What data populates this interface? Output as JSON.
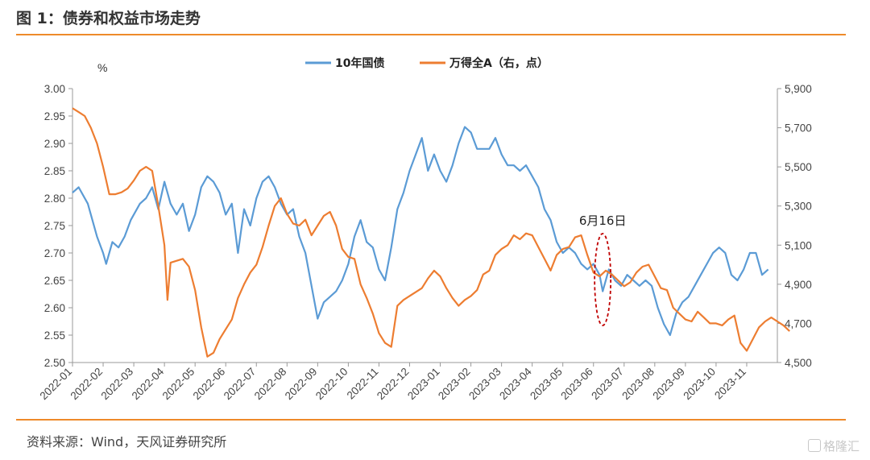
{
  "figure_title": "图 1：债券和权益市场走势",
  "source_note": "资料来源：Wind，天风证券研究所",
  "watermark": "格隆汇",
  "colors": {
    "rule": "#ee8a2a",
    "bond": "#5b9bd5",
    "equity": "#ed7d31",
    "annotation": "#c00000"
  },
  "chart_data": {
    "type": "line",
    "left_unit": "%",
    "legend": [
      "10年国债",
      "万得全A（右，点）"
    ],
    "legend_position": "top-center",
    "grid": false,
    "x_labels": [
      "2022-01",
      "2022-02",
      "2022-03",
      "2022-04",
      "2022-05",
      "2022-06",
      "2022-07",
      "2022-08",
      "2022-09",
      "2022-10",
      "2022-11",
      "2022-12",
      "2023-01",
      "2023-02",
      "2023-03",
      "2023-04",
      "2023-05",
      "2023-06",
      "2023-07",
      "2023-08",
      "2023-09",
      "2023-10",
      "2023-11"
    ],
    "y_left": {
      "ticks": [
        "3.00",
        "2.95",
        "2.90",
        "2.85",
        "2.80",
        "2.75",
        "2.70",
        "2.65",
        "2.60",
        "2.55",
        "2.50"
      ],
      "range": [
        2.5,
        3.0
      ]
    },
    "y_right": {
      "ticks": [
        "5,900",
        "5,700",
        "5,500",
        "5,300",
        "5,100",
        "4,900",
        "4,700",
        "4,500"
      ],
      "range": [
        4500,
        5900
      ]
    },
    "annotation": {
      "text": "6月16日",
      "x": 17.3
    },
    "series": [
      {
        "name": "10年国债",
        "axis": "left",
        "points": [
          [
            0,
            2.81
          ],
          [
            0.2,
            2.82
          ],
          [
            0.5,
            2.79
          ],
          [
            0.8,
            2.73
          ],
          [
            1.0,
            2.7
          ],
          [
            1.1,
            2.68
          ],
          [
            1.3,
            2.72
          ],
          [
            1.5,
            2.71
          ],
          [
            1.7,
            2.73
          ],
          [
            1.9,
            2.76
          ],
          [
            2.2,
            2.79
          ],
          [
            2.4,
            2.8
          ],
          [
            2.6,
            2.82
          ],
          [
            2.8,
            2.78
          ],
          [
            3.0,
            2.83
          ],
          [
            3.2,
            2.79
          ],
          [
            3.4,
            2.77
          ],
          [
            3.6,
            2.79
          ],
          [
            3.8,
            2.74
          ],
          [
            4.0,
            2.77
          ],
          [
            4.2,
            2.82
          ],
          [
            4.4,
            2.84
          ],
          [
            4.6,
            2.83
          ],
          [
            4.8,
            2.81
          ],
          [
            5.0,
            2.77
          ],
          [
            5.2,
            2.79
          ],
          [
            5.4,
            2.7
          ],
          [
            5.6,
            2.78
          ],
          [
            5.8,
            2.75
          ],
          [
            6.0,
            2.8
          ],
          [
            6.2,
            2.83
          ],
          [
            6.4,
            2.84
          ],
          [
            6.6,
            2.82
          ],
          [
            6.8,
            2.79
          ],
          [
            7.0,
            2.77
          ],
          [
            7.2,
            2.78
          ],
          [
            7.4,
            2.73
          ],
          [
            7.6,
            2.7
          ],
          [
            7.8,
            2.64
          ],
          [
            8.0,
            2.58
          ],
          [
            8.2,
            2.61
          ],
          [
            8.4,
            2.62
          ],
          [
            8.6,
            2.63
          ],
          [
            8.8,
            2.65
          ],
          [
            9.0,
            2.68
          ],
          [
            9.2,
            2.73
          ],
          [
            9.4,
            2.76
          ],
          [
            9.6,
            2.72
          ],
          [
            9.8,
            2.71
          ],
          [
            10.0,
            2.67
          ],
          [
            10.2,
            2.65
          ],
          [
            10.4,
            2.71
          ],
          [
            10.6,
            2.78
          ],
          [
            10.8,
            2.81
          ],
          [
            11.0,
            2.85
          ],
          [
            11.2,
            2.88
          ],
          [
            11.4,
            2.91
          ],
          [
            11.6,
            2.85
          ],
          [
            11.8,
            2.88
          ],
          [
            12.0,
            2.85
          ],
          [
            12.2,
            2.83
          ],
          [
            12.4,
            2.86
          ],
          [
            12.6,
            2.9
          ],
          [
            12.8,
            2.93
          ],
          [
            13.0,
            2.92
          ],
          [
            13.2,
            2.89
          ],
          [
            13.4,
            2.89
          ],
          [
            13.6,
            2.89
          ],
          [
            13.8,
            2.91
          ],
          [
            14.0,
            2.88
          ],
          [
            14.2,
            2.86
          ],
          [
            14.4,
            2.86
          ],
          [
            14.6,
            2.85
          ],
          [
            14.8,
            2.86
          ],
          [
            15.0,
            2.84
          ],
          [
            15.2,
            2.82
          ],
          [
            15.4,
            2.78
          ],
          [
            15.6,
            2.76
          ],
          [
            15.8,
            2.72
          ],
          [
            16.0,
            2.7
          ],
          [
            16.2,
            2.71
          ],
          [
            16.4,
            2.7
          ],
          [
            16.6,
            2.68
          ],
          [
            16.8,
            2.67
          ],
          [
            17.0,
            2.68
          ],
          [
            17.2,
            2.66
          ],
          [
            17.3,
            2.63
          ],
          [
            17.5,
            2.67
          ],
          [
            17.7,
            2.65
          ],
          [
            17.9,
            2.64
          ],
          [
            18.1,
            2.66
          ],
          [
            18.3,
            2.65
          ],
          [
            18.5,
            2.64
          ],
          [
            18.7,
            2.65
          ],
          [
            18.9,
            2.64
          ],
          [
            19.1,
            2.6
          ],
          [
            19.3,
            2.57
          ],
          [
            19.5,
            2.55
          ],
          [
            19.7,
            2.59
          ],
          [
            19.9,
            2.61
          ],
          [
            20.1,
            2.62
          ],
          [
            20.3,
            2.64
          ],
          [
            20.5,
            2.66
          ],
          [
            20.7,
            2.68
          ],
          [
            20.9,
            2.7
          ],
          [
            21.1,
            2.71
          ],
          [
            21.3,
            2.7
          ],
          [
            21.5,
            2.66
          ],
          [
            21.7,
            2.65
          ],
          [
            21.9,
            2.67
          ],
          [
            22.1,
            2.7
          ],
          [
            22.3,
            2.7
          ],
          [
            22.5,
            2.66
          ],
          [
            22.7,
            2.67
          ]
        ]
      },
      {
        "name": "万得全A（右，点）",
        "axis": "right",
        "points": [
          [
            0,
            5800
          ],
          [
            0.2,
            5780
          ],
          [
            0.4,
            5760
          ],
          [
            0.6,
            5700
          ],
          [
            0.8,
            5620
          ],
          [
            1.0,
            5500
          ],
          [
            1.2,
            5360
          ],
          [
            1.4,
            5360
          ],
          [
            1.6,
            5370
          ],
          [
            1.8,
            5390
          ],
          [
            2.0,
            5430
          ],
          [
            2.2,
            5480
          ],
          [
            2.4,
            5500
          ],
          [
            2.6,
            5480
          ],
          [
            2.8,
            5300
          ],
          [
            3.0,
            5100
          ],
          [
            3.1,
            4820
          ],
          [
            3.2,
            5010
          ],
          [
            3.4,
            5020
          ],
          [
            3.6,
            5030
          ],
          [
            3.8,
            4990
          ],
          [
            4.0,
            4870
          ],
          [
            4.2,
            4680
          ],
          [
            4.4,
            4530
          ],
          [
            4.6,
            4550
          ],
          [
            4.8,
            4620
          ],
          [
            5.0,
            4670
          ],
          [
            5.2,
            4720
          ],
          [
            5.4,
            4830
          ],
          [
            5.6,
            4900
          ],
          [
            5.8,
            4960
          ],
          [
            6.0,
            5000
          ],
          [
            6.2,
            5090
          ],
          [
            6.4,
            5200
          ],
          [
            6.6,
            5300
          ],
          [
            6.8,
            5340
          ],
          [
            7.0,
            5260
          ],
          [
            7.2,
            5210
          ],
          [
            7.4,
            5200
          ],
          [
            7.6,
            5230
          ],
          [
            7.8,
            5150
          ],
          [
            8.0,
            5200
          ],
          [
            8.2,
            5250
          ],
          [
            8.4,
            5270
          ],
          [
            8.6,
            5200
          ],
          [
            8.8,
            5080
          ],
          [
            9.0,
            5040
          ],
          [
            9.2,
            5030
          ],
          [
            9.4,
            4900
          ],
          [
            9.6,
            4830
          ],
          [
            9.8,
            4750
          ],
          [
            10.0,
            4650
          ],
          [
            10.2,
            4600
          ],
          [
            10.4,
            4580
          ],
          [
            10.6,
            4790
          ],
          [
            10.8,
            4820
          ],
          [
            11.0,
            4840
          ],
          [
            11.2,
            4860
          ],
          [
            11.4,
            4880
          ],
          [
            11.6,
            4930
          ],
          [
            11.8,
            4970
          ],
          [
            12.0,
            4940
          ],
          [
            12.2,
            4880
          ],
          [
            12.4,
            4830
          ],
          [
            12.6,
            4790
          ],
          [
            12.8,
            4820
          ],
          [
            13.0,
            4840
          ],
          [
            13.2,
            4870
          ],
          [
            13.4,
            4950
          ],
          [
            13.6,
            4970
          ],
          [
            13.8,
            5050
          ],
          [
            14.0,
            5080
          ],
          [
            14.2,
            5100
          ],
          [
            14.4,
            5150
          ],
          [
            14.6,
            5130
          ],
          [
            14.8,
            5160
          ],
          [
            15.0,
            5150
          ],
          [
            15.2,
            5090
          ],
          [
            15.4,
            5030
          ],
          [
            15.6,
            4970
          ],
          [
            15.8,
            5050
          ],
          [
            16.0,
            5080
          ],
          [
            16.2,
            5090
          ],
          [
            16.4,
            5140
          ],
          [
            16.6,
            5150
          ],
          [
            16.8,
            5050
          ],
          [
            17.0,
            4960
          ],
          [
            17.2,
            4940
          ],
          [
            17.4,
            4970
          ],
          [
            17.6,
            4950
          ],
          [
            17.8,
            4920
          ],
          [
            18.0,
            4890
          ],
          [
            18.2,
            4910
          ],
          [
            18.4,
            4960
          ],
          [
            18.6,
            4990
          ],
          [
            18.8,
            5000
          ],
          [
            19.0,
            4940
          ],
          [
            19.2,
            4880
          ],
          [
            19.4,
            4870
          ],
          [
            19.6,
            4780
          ],
          [
            19.8,
            4750
          ],
          [
            20.0,
            4720
          ],
          [
            20.2,
            4710
          ],
          [
            20.4,
            4760
          ],
          [
            20.6,
            4730
          ],
          [
            20.8,
            4700
          ],
          [
            21.0,
            4700
          ],
          [
            21.2,
            4690
          ],
          [
            21.4,
            4720
          ],
          [
            21.6,
            4740
          ],
          [
            21.8,
            4600
          ],
          [
            22.0,
            4560
          ],
          [
            22.2,
            4620
          ],
          [
            22.4,
            4680
          ],
          [
            22.6,
            4710
          ],
          [
            22.8,
            4730
          ],
          [
            23.0,
            4710
          ],
          [
            23.2,
            4690
          ],
          [
            23.4,
            4660
          ]
        ]
      }
    ]
  }
}
